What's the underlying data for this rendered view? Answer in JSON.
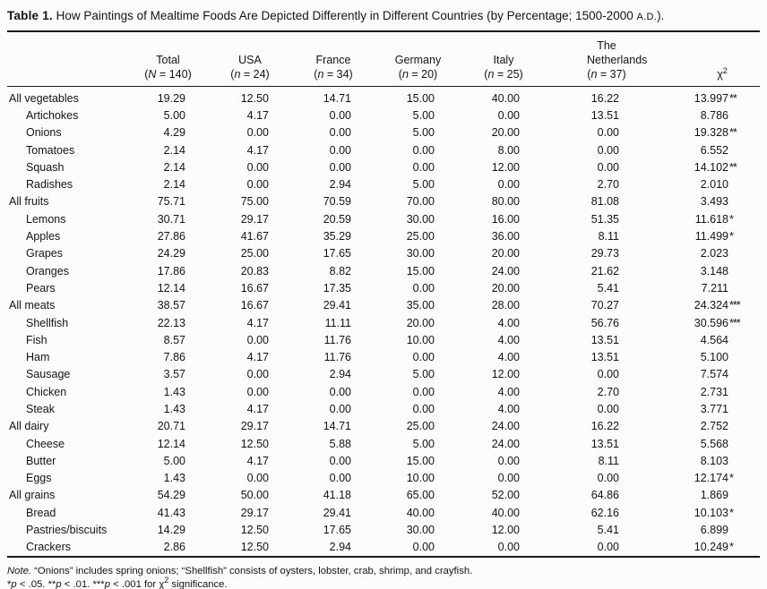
{
  "title": {
    "label": "Table 1.",
    "text": " How Paintings of Mealtime Foods Are Depicted Differently in Different Countries (by Percentage; 1500-2000 ",
    "era": "A.D.",
    "suffix": ")."
  },
  "fmt": {
    "open": "(",
    "eq": " = ",
    "close": ")"
  },
  "columns": [
    {
      "name": "Total",
      "stat": "N",
      "count": "140"
    },
    {
      "name": "USA",
      "stat": "n",
      "count": "24"
    },
    {
      "name": "France",
      "stat": "n",
      "count": "34"
    },
    {
      "name": "Germany",
      "stat": "n",
      "count": "20"
    },
    {
      "name": "Italy",
      "stat": "n",
      "count": "25"
    },
    {
      "name": "The Netherlands",
      "stat": "n",
      "count": "37"
    }
  ],
  "chi_header": {
    "symbol": "χ",
    "sup": "2"
  },
  "chart_data": {
    "type": "table",
    "title": "How Paintings of Mealtime Foods Are Depicted Differently in Different Countries (by Percentage; 1500-2000 A.D.)",
    "columns": [
      "Total (N = 140)",
      "USA (n = 24)",
      "France (n = 34)",
      "Germany (n = 20)",
      "Italy (n = 25)",
      "The Netherlands (n = 37)",
      "chi-square"
    ]
  },
  "rows": [
    {
      "label": "All vegetables",
      "indent": false,
      "values": [
        "19.29",
        "12.50",
        "14.71",
        "15.00",
        "40.00",
        "16.22"
      ],
      "chi": "13.997",
      "stars": "**"
    },
    {
      "label": "Artichokes",
      "indent": true,
      "values": [
        "5.00",
        "4.17",
        "0.00",
        "5.00",
        "0.00",
        "13.51"
      ],
      "chi": "8.786",
      "stars": ""
    },
    {
      "label": "Onions",
      "indent": true,
      "values": [
        "4.29",
        "0.00",
        "0.00",
        "5.00",
        "20.00",
        "0.00"
      ],
      "chi": "19.328",
      "stars": "**"
    },
    {
      "label": "Tomatoes",
      "indent": true,
      "values": [
        "2.14",
        "4.17",
        "0.00",
        "0.00",
        "8.00",
        "0.00"
      ],
      "chi": "6.552",
      "stars": ""
    },
    {
      "label": "Squash",
      "indent": true,
      "values": [
        "2.14",
        "0.00",
        "0.00",
        "0.00",
        "12.00",
        "0.00"
      ],
      "chi": "14.102",
      "stars": "**"
    },
    {
      "label": "Radishes",
      "indent": true,
      "values": [
        "2.14",
        "0.00",
        "2.94",
        "5.00",
        "0.00",
        "2.70"
      ],
      "chi": "2.010",
      "stars": ""
    },
    {
      "label": "All fruits",
      "indent": false,
      "values": [
        "75.71",
        "75.00",
        "70.59",
        "70.00",
        "80.00",
        "81.08"
      ],
      "chi": "3.493",
      "stars": ""
    },
    {
      "label": "Lemons",
      "indent": true,
      "values": [
        "30.71",
        "29.17",
        "20.59",
        "30.00",
        "16.00",
        "51.35"
      ],
      "chi": "11.618",
      "stars": "*"
    },
    {
      "label": "Apples",
      "indent": true,
      "values": [
        "27.86",
        "41.67",
        "35.29",
        "25.00",
        "36.00",
        "8.11"
      ],
      "chi": "11.499",
      "stars": "*"
    },
    {
      "label": "Grapes",
      "indent": true,
      "values": [
        "24.29",
        "25.00",
        "17.65",
        "30.00",
        "20.00",
        "29.73"
      ],
      "chi": "2.023",
      "stars": ""
    },
    {
      "label": "Oranges",
      "indent": true,
      "values": [
        "17.86",
        "20.83",
        "8.82",
        "15.00",
        "24.00",
        "21.62"
      ],
      "chi": "3.148",
      "stars": ""
    },
    {
      "label": "Pears",
      "indent": true,
      "values": [
        "12.14",
        "16.67",
        "17.35",
        "0.00",
        "20.00",
        "5.41"
      ],
      "chi": "7.211",
      "stars": ""
    },
    {
      "label": "All meats",
      "indent": false,
      "values": [
        "38.57",
        "16.67",
        "29.41",
        "35.00",
        "28.00",
        "70.27"
      ],
      "chi": "24.324",
      "stars": "***"
    },
    {
      "label": "Shellfish",
      "indent": true,
      "values": [
        "22.13",
        "4.17",
        "11.11",
        "20.00",
        "4.00",
        "56.76"
      ],
      "chi": "30.596",
      "stars": "***"
    },
    {
      "label": "Fish",
      "indent": true,
      "values": [
        "8.57",
        "0.00",
        "11.76",
        "10.00",
        "4.00",
        "13.51"
      ],
      "chi": "4.564",
      "stars": ""
    },
    {
      "label": "Ham",
      "indent": true,
      "values": [
        "7.86",
        "4.17",
        "11.76",
        "0.00",
        "4.00",
        "13.51"
      ],
      "chi": "5.100",
      "stars": ""
    },
    {
      "label": "Sausage",
      "indent": true,
      "values": [
        "3.57",
        "0.00",
        "2.94",
        "5.00",
        "12.00",
        "0.00"
      ],
      "chi": "7.574",
      "stars": ""
    },
    {
      "label": "Chicken",
      "indent": true,
      "values": [
        "1.43",
        "0.00",
        "0.00",
        "0.00",
        "4.00",
        "2.70"
      ],
      "chi": "2.731",
      "stars": ""
    },
    {
      "label": "Steak",
      "indent": true,
      "values": [
        "1.43",
        "4.17",
        "0.00",
        "0.00",
        "4.00",
        "0.00"
      ],
      "chi": "3.771",
      "stars": ""
    },
    {
      "label": "All dairy",
      "indent": false,
      "values": [
        "20.71",
        "29.17",
        "14.71",
        "25.00",
        "24.00",
        "16.22"
      ],
      "chi": "2.752",
      "stars": ""
    },
    {
      "label": "Cheese",
      "indent": true,
      "values": [
        "12.14",
        "12.50",
        "5.88",
        "5.00",
        "24.00",
        "13.51"
      ],
      "chi": "5.568",
      "stars": ""
    },
    {
      "label": "Butter",
      "indent": true,
      "values": [
        "5.00",
        "4.17",
        "0.00",
        "15.00",
        "0.00",
        "8.11"
      ],
      "chi": "8.103",
      "stars": ""
    },
    {
      "label": "Eggs",
      "indent": true,
      "values": [
        "1.43",
        "0.00",
        "0.00",
        "10.00",
        "0.00",
        "0.00"
      ],
      "chi": "12.174",
      "stars": "*"
    },
    {
      "label": "All grains",
      "indent": false,
      "values": [
        "54.29",
        "50.00",
        "41.18",
        "65.00",
        "52.00",
        "64.86"
      ],
      "chi": "1.869",
      "stars": ""
    },
    {
      "label": "Bread",
      "indent": true,
      "values": [
        "41.43",
        "29.17",
        "29.41",
        "40.00",
        "40.00",
        "62.16"
      ],
      "chi": "10.103",
      "stars": "*"
    },
    {
      "label": "Pastries/biscuits",
      "indent": true,
      "values": [
        "14.29",
        "12.50",
        "17.65",
        "30.00",
        "12.00",
        "5.41"
      ],
      "chi": "6.899",
      "stars": ""
    },
    {
      "label": "Crackers",
      "indent": true,
      "values": [
        "2.86",
        "12.50",
        "2.94",
        "0.00",
        "0.00",
        "0.00"
      ],
      "chi": "10.249",
      "stars": "*"
    }
  ],
  "notes": {
    "note_label": "Note.",
    "note_text": " “Onions” includes spring onions; “Shellfish” consists of oysters, lobster, crab, shrimp, and crayfish.",
    "sig": {
      "s1": "*",
      "p1": "p",
      "t1": " < .05. ",
      "s2": "**",
      "p2": "p",
      "t2": " < .01. ",
      "s3": "***",
      "p3": "p",
      "t3": " < .001 for ",
      "chi": "χ",
      "sup": "2",
      "t4": " significance."
    }
  }
}
